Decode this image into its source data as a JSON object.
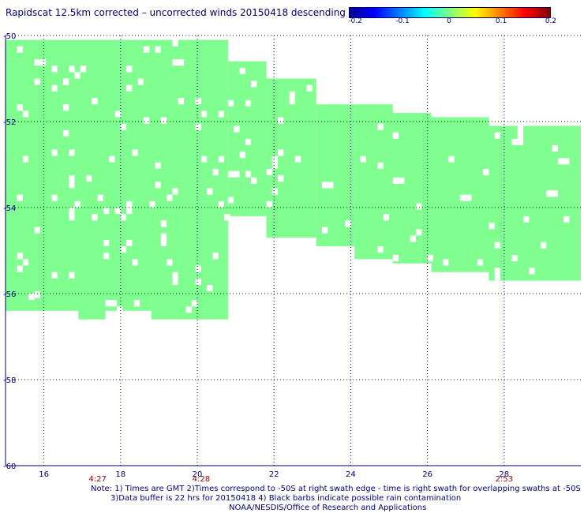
{
  "title": "Rapidscat 12.5km corrected – uncorrected winds 20150418 descending",
  "colorbar": {
    "ticks": [
      "-0.2",
      "-0.1",
      "0",
      "0.1",
      "0.2"
    ],
    "tick_values": [
      -0.2,
      -0.1,
      0,
      0.1,
      0.2
    ]
  },
  "chart_data": {
    "type": "heatmap",
    "xlim": [
      15,
      30
    ],
    "ylim": [
      -60,
      -50
    ],
    "x_ticks": [
      16,
      18,
      20,
      22,
      24,
      26,
      28
    ],
    "x_tick_labels": [
      "16",
      "18",
      "20",
      "22",
      "24",
      "26",
      "28"
    ],
    "y_ticks": [
      -50,
      -52,
      -54,
      -56,
      -58,
      -60
    ],
    "y_tick_labels": [
      "-50",
      "-52",
      "-54",
      "-56",
      "-58",
      "-60"
    ],
    "grid": true,
    "swath_value": 0,
    "swath_color": "#80ff90",
    "cell_width_deg": 0.15,
    "cell_height_deg": 0.15,
    "swath_columns": [
      {
        "lon_start": 15.0,
        "lon_end": 20.8,
        "lat_top": -50.1,
        "lat_bottom": -56.0
      },
      {
        "lon_start": 15.0,
        "lon_end": 16.9,
        "lat_top": -56.0,
        "lat_bottom": -56.4
      },
      {
        "lon_start": 16.9,
        "lon_end": 17.6,
        "lat_top": -56.0,
        "lat_bottom": -56.6
      },
      {
        "lon_start": 17.6,
        "lon_end": 18.8,
        "lat_top": -56.0,
        "lat_bottom": -56.4
      },
      {
        "lon_start": 18.8,
        "lon_end": 20.8,
        "lat_top": -56.0,
        "lat_bottom": -56.6
      },
      {
        "lon_start": 20.8,
        "lon_end": 21.8,
        "lat_top": -50.6,
        "lat_bottom": -54.2
      },
      {
        "lon_start": 21.8,
        "lon_end": 23.1,
        "lat_top": -51.0,
        "lat_bottom": -54.7
      },
      {
        "lon_start": 23.1,
        "lon_end": 24.1,
        "lat_top": -51.6,
        "lat_bottom": -54.9
      },
      {
        "lon_start": 24.1,
        "lon_end": 25.1,
        "lat_top": -51.6,
        "lat_bottom": -55.2
      },
      {
        "lon_start": 25.1,
        "lon_end": 26.1,
        "lat_top": -51.8,
        "lat_bottom": -55.3
      },
      {
        "lon_start": 26.1,
        "lon_end": 27.6,
        "lat_top": -51.9,
        "lat_bottom": -55.5
      },
      {
        "lon_start": 27.6,
        "lon_end": 28.8,
        "lat_top": -52.1,
        "lat_bottom": -55.7
      },
      {
        "lon_start": 28.8,
        "lon_end": 30.0,
        "lat_top": -52.1,
        "lat_bottom": -55.7
      }
    ],
    "time_labels": [
      {
        "text": "4:27",
        "lon": 17.4
      },
      {
        "text": "4:28",
        "lon": 20.1
      },
      {
        "text": "2:53",
        "lon": 28.0
      }
    ]
  },
  "notes": [
    "Note: 1) Times are GMT 2)Times correspond to -50S at right swath edge - time is right swath for overlapping swaths at -50S",
    "3)Data buffer is 22 hrs for 20150418 4) Black barbs indicate possible rain contamination",
    "NOAA/NESDIS/Office of Research and Applications"
  ]
}
